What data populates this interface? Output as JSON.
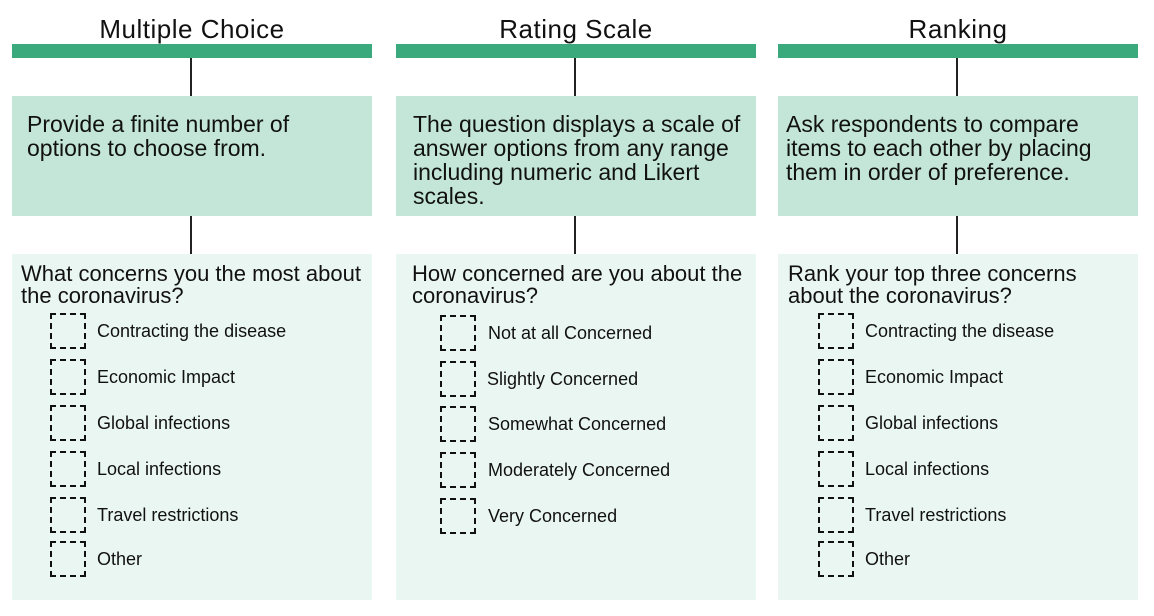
{
  "columns": [
    {
      "title": "Multiple Choice",
      "description": "Provide a finite number of options to choose from.",
      "question": "What concerns you the most about the coronavirus?",
      "options": [
        "Contracting the disease",
        "Economic Impact",
        "Global infections",
        "Local infections",
        "Travel restrictions",
        "Other"
      ]
    },
    {
      "title": "Rating Scale",
      "description": "The question displays a scale of answer options from any range including numeric and Likert scales.",
      "question": "How concerned are you about the coronavirus?",
      "options": [
        "Not at all Concerned",
        "Slightly Concerned",
        "Somewhat Concerned",
        "Moderately Concerned",
        "Very Concerned"
      ]
    },
    {
      "title": "Ranking",
      "description": "Ask respondents to compare items to each other by placing them in order of preference.",
      "question": "Rank your top three concerns about the coronavirus?",
      "options": [
        "Contracting the disease",
        "Economic Impact",
        "Global infections",
        "Local infections",
        "Travel restrictions",
        "Other"
      ]
    }
  ],
  "colors": {
    "header_bar": "#3aaa7d",
    "description_bg": "#c3e6d8",
    "example_bg": "#eaf6f1"
  }
}
